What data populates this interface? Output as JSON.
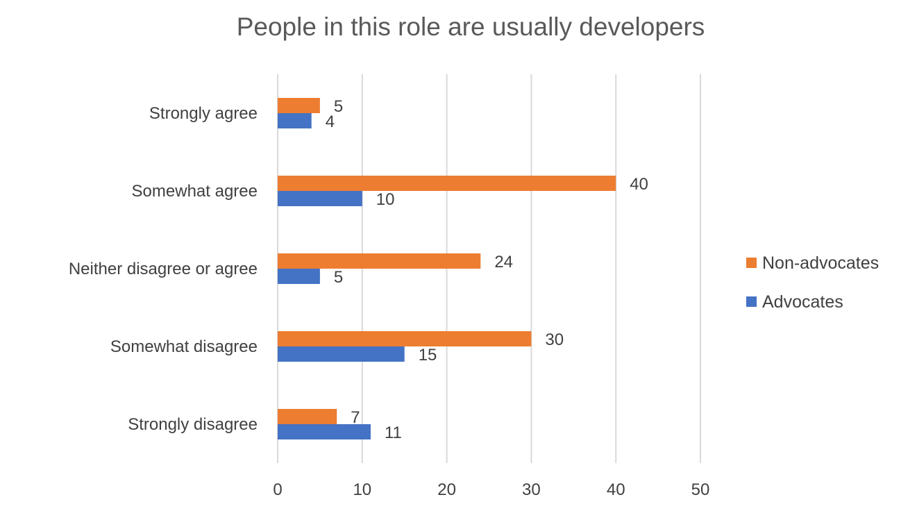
{
  "chart_data": {
    "type": "bar",
    "orientation": "horizontal",
    "title": "People in this role are usually developers",
    "categories": [
      "Strongly agree",
      "Somewhat agree",
      "Neither disagree or agree",
      "Somewhat disagree",
      "Strongly disagree"
    ],
    "series": [
      {
        "name": "Non-advocates",
        "color": "#ED7D31",
        "values": [
          5,
          40,
          24,
          30,
          7
        ]
      },
      {
        "name": "Advocates",
        "color": "#4472C4",
        "values": [
          4,
          10,
          5,
          15,
          11
        ]
      }
    ],
    "xlim": [
      0,
      50
    ],
    "xticks": [
      0,
      10,
      20,
      30,
      40,
      50
    ],
    "grid": true,
    "legend_position": "right",
    "data_labels": true
  }
}
